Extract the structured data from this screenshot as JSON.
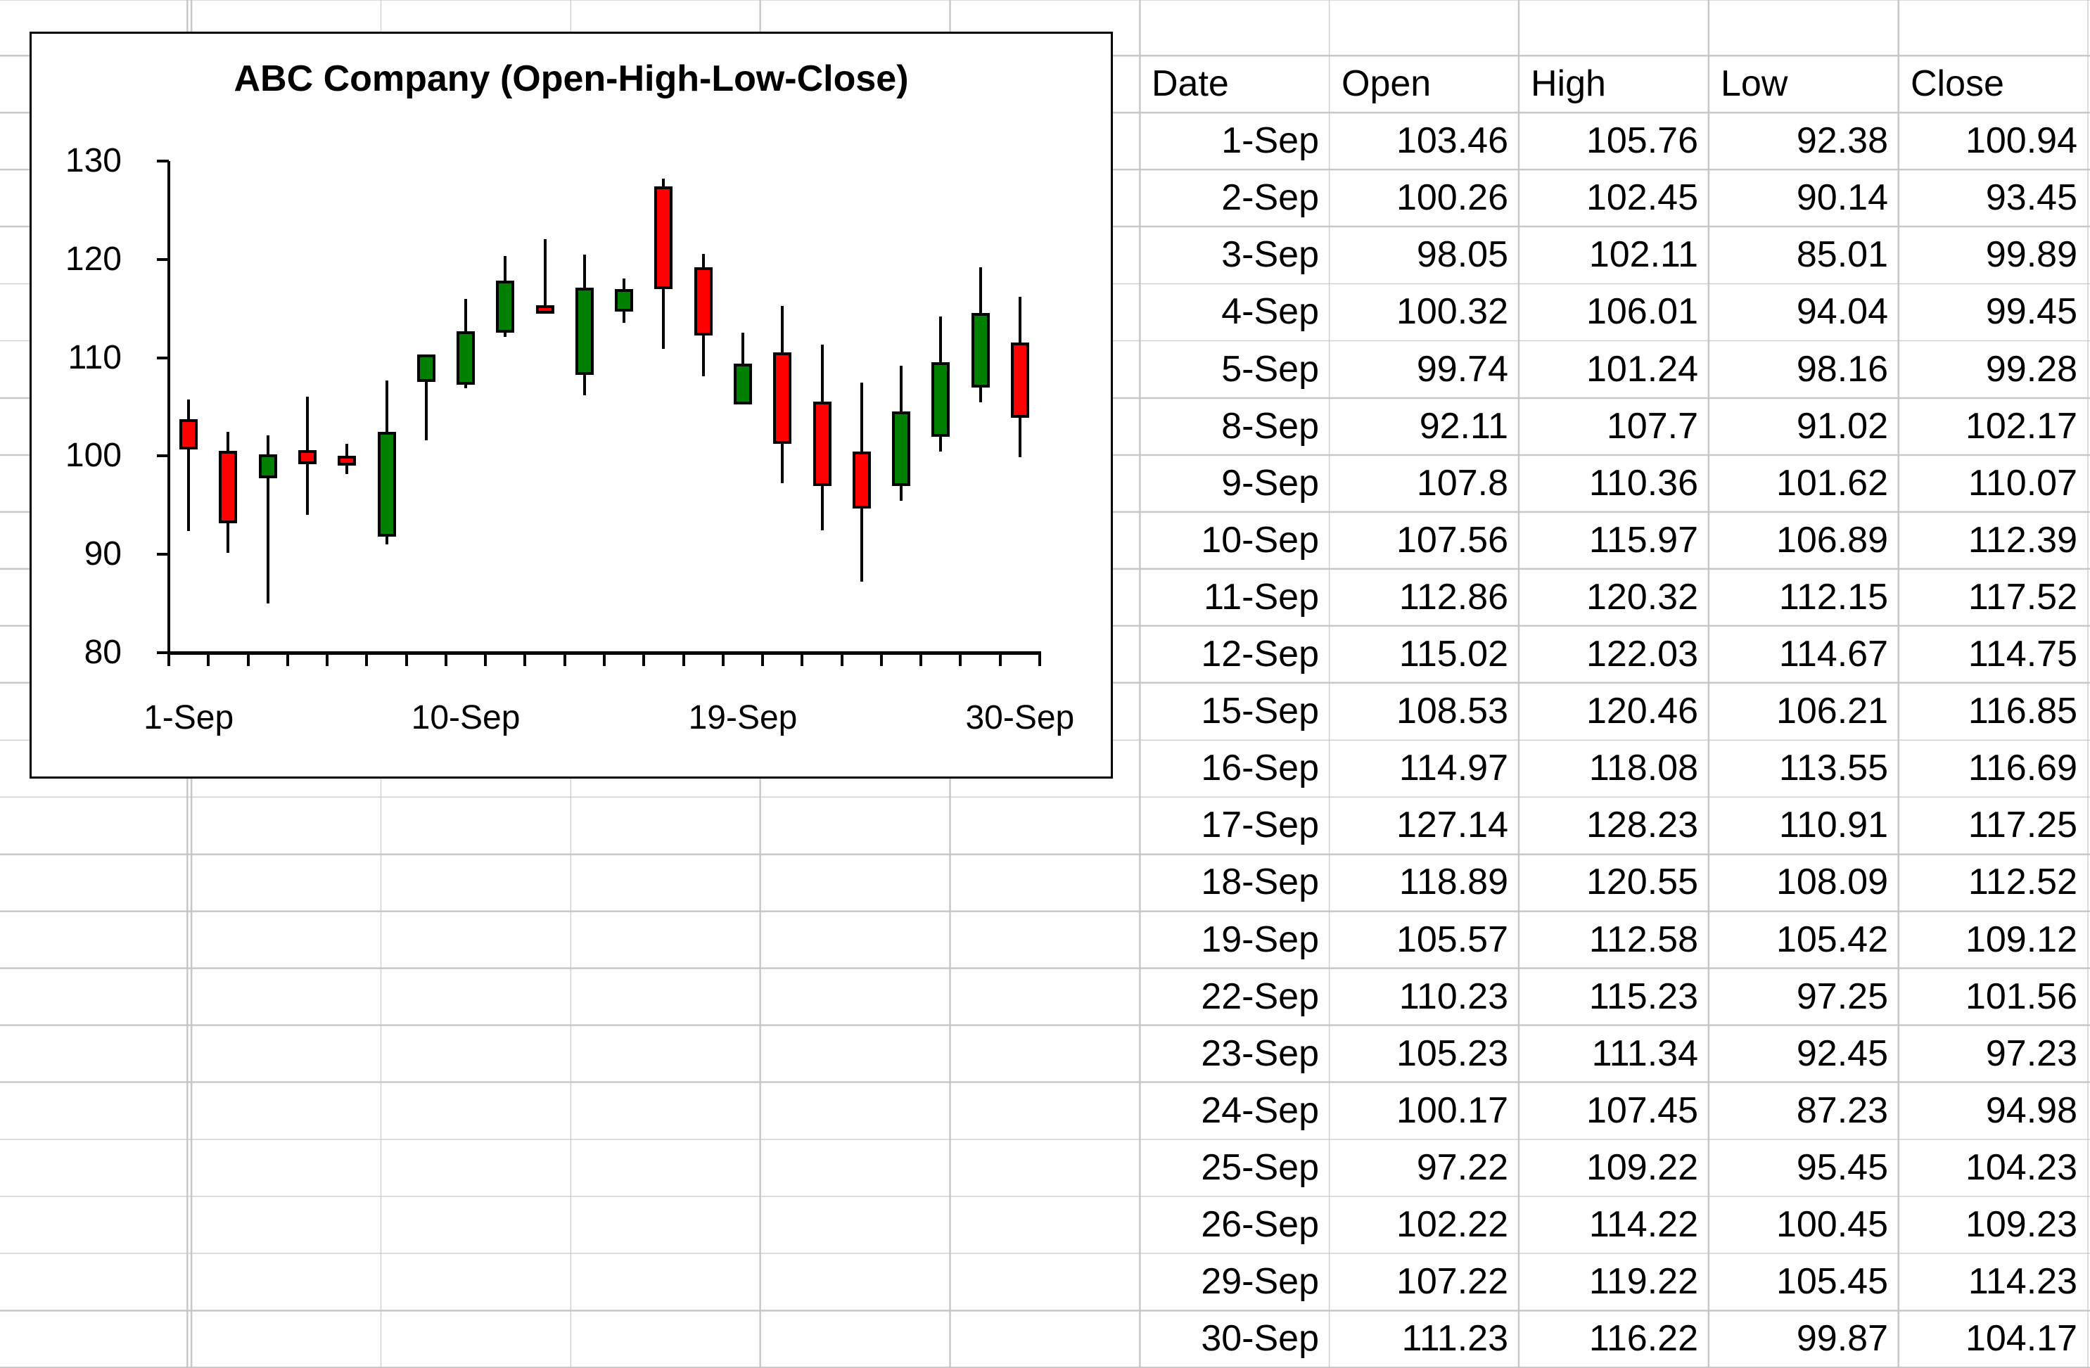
{
  "table": {
    "headers": [
      "Date",
      "Open",
      "High",
      "Low",
      "Close"
    ],
    "rows": [
      [
        "1-Sep",
        "103.46",
        "105.76",
        "92.38",
        "100.94"
      ],
      [
        "2-Sep",
        "100.26",
        "102.45",
        "90.14",
        "93.45"
      ],
      [
        "3-Sep",
        "98.05",
        "102.11",
        "85.01",
        "99.89"
      ],
      [
        "4-Sep",
        "100.32",
        "106.01",
        "94.04",
        "99.45"
      ],
      [
        "5-Sep",
        "99.74",
        "101.24",
        "98.16",
        "99.28"
      ],
      [
        "8-Sep",
        "92.11",
        "107.7",
        "91.02",
        "102.17"
      ],
      [
        "9-Sep",
        "107.8",
        "110.36",
        "101.62",
        "110.07"
      ],
      [
        "10-Sep",
        "107.56",
        "115.97",
        "106.89",
        "112.39"
      ],
      [
        "11-Sep",
        "112.86",
        "120.32",
        "112.15",
        "117.52"
      ],
      [
        "12-Sep",
        "115.02",
        "122.03",
        "114.67",
        "114.75"
      ],
      [
        "15-Sep",
        "108.53",
        "120.46",
        "106.21",
        "116.85"
      ],
      [
        "16-Sep",
        "114.97",
        "118.08",
        "113.55",
        "116.69"
      ],
      [
        "17-Sep",
        "127.14",
        "128.23",
        "110.91",
        "117.25"
      ],
      [
        "18-Sep",
        "118.89",
        "120.55",
        "108.09",
        "112.52"
      ],
      [
        "19-Sep",
        "105.57",
        "112.58",
        "105.42",
        "109.12"
      ],
      [
        "22-Sep",
        "110.23",
        "115.23",
        "97.25",
        "101.56"
      ],
      [
        "23-Sep",
        "105.23",
        "111.34",
        "92.45",
        "97.23"
      ],
      [
        "24-Sep",
        "100.17",
        "107.45",
        "87.23",
        "94.98"
      ],
      [
        "25-Sep",
        "97.22",
        "109.22",
        "95.45",
        "104.23"
      ],
      [
        "26-Sep",
        "102.22",
        "114.22",
        "100.45",
        "109.23"
      ],
      [
        "29-Sep",
        "107.22",
        "119.22",
        "105.45",
        "114.23"
      ],
      [
        "30-Sep",
        "111.23",
        "116.22",
        "99.87",
        "104.17"
      ]
    ]
  },
  "chart_data": {
    "type": "candlestick",
    "title": "ABC Company (Open-High-Low-Close)",
    "categories": [
      "1-Sep",
      "2-Sep",
      "3-Sep",
      "4-Sep",
      "5-Sep",
      "8-Sep",
      "9-Sep",
      "10-Sep",
      "11-Sep",
      "12-Sep",
      "15-Sep",
      "16-Sep",
      "17-Sep",
      "18-Sep",
      "19-Sep",
      "22-Sep",
      "23-Sep",
      "24-Sep",
      "25-Sep",
      "26-Sep",
      "29-Sep",
      "30-Sep"
    ],
    "series": [
      {
        "name": "Open",
        "values": [
          103.46,
          100.26,
          98.05,
          100.32,
          99.74,
          92.11,
          107.8,
          107.56,
          112.86,
          115.02,
          108.53,
          114.97,
          127.14,
          118.89,
          105.57,
          110.23,
          105.23,
          100.17,
          97.22,
          102.22,
          107.22,
          111.23
        ]
      },
      {
        "name": "High",
        "values": [
          105.76,
          102.45,
          102.11,
          106.01,
          101.24,
          107.7,
          110.36,
          115.97,
          120.32,
          122.03,
          120.46,
          118.08,
          128.23,
          120.55,
          112.58,
          115.23,
          111.34,
          107.45,
          109.22,
          114.22,
          119.22,
          116.22
        ]
      },
      {
        "name": "Low",
        "values": [
          92.38,
          90.14,
          85.01,
          94.04,
          98.16,
          91.02,
          101.62,
          106.89,
          112.15,
          114.67,
          106.21,
          113.55,
          110.91,
          108.09,
          105.42,
          97.25,
          92.45,
          87.23,
          95.45,
          100.45,
          105.45,
          99.87
        ]
      },
      {
        "name": "Close",
        "values": [
          100.94,
          93.45,
          99.89,
          99.45,
          99.28,
          102.17,
          110.07,
          112.39,
          117.52,
          114.75,
          116.85,
          116.69,
          117.25,
          112.52,
          109.12,
          101.56,
          97.23,
          94.98,
          104.23,
          109.23,
          114.23,
          104.17
        ]
      }
    ],
    "ylim": [
      80,
      130
    ],
    "yticks": [
      80,
      90,
      100,
      110,
      120,
      130
    ],
    "x_axis_labels": [
      "1-Sep",
      "10-Sep",
      "19-Sep",
      "30-Sep"
    ],
    "x_axis_label_indices": [
      0,
      7,
      14,
      21
    ],
    "up_color": "#008000",
    "down_color": "#FF0000",
    "grid": false,
    "legend": "none"
  }
}
